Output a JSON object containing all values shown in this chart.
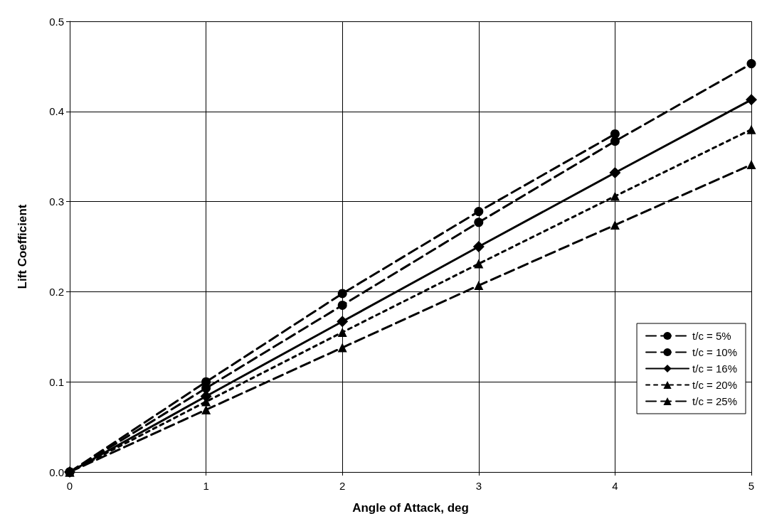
{
  "chart_data": {
    "type": "line",
    "xlabel": "Angle of Attack, deg",
    "ylabel": "Lift Coefficient",
    "x": [
      0,
      1,
      2,
      3,
      4,
      5
    ],
    "series": [
      {
        "name": "t/c = 5%",
        "color": "#000000",
        "marker": "circle",
        "line_style": "dashed",
        "values": [
          0,
          0.1,
          0.198,
          0.289,
          0.375,
          null
        ]
      },
      {
        "name": "t/c = 10%",
        "color": "#000000",
        "marker": "circle",
        "line_style": "dashed",
        "values": [
          0,
          0.093,
          0.185,
          0.277,
          0.367,
          0.453
        ]
      },
      {
        "name": "t/c = 16%",
        "color": "#000000",
        "marker": "diamond",
        "line_style": "solid",
        "values": [
          0,
          0.084,
          0.167,
          0.25,
          0.332,
          0.413
        ]
      },
      {
        "name": "t/c = 20%",
        "color": "#000000",
        "marker": "triangle",
        "line_style": "dotted",
        "values": [
          0,
          0.078,
          0.155,
          0.231,
          0.306,
          0.38
        ]
      },
      {
        "name": "t/c = 25%",
        "color": "#000000",
        "marker": "triangle",
        "line_style": "dashed",
        "values": [
          0,
          0.069,
          0.138,
          0.207,
          0.274,
          0.341
        ]
      }
    ],
    "xlim": [
      0,
      5
    ],
    "xticks": [
      0,
      1,
      2,
      3,
      4,
      5
    ],
    "ylim": [
      0,
      0.5
    ],
    "yticks": [
      {
        "value": 0,
        "label": "0.0"
      },
      0.1,
      0.2,
      0.3,
      0.4,
      0.5
    ],
    "grid": true,
    "legend": "bottom right"
  }
}
